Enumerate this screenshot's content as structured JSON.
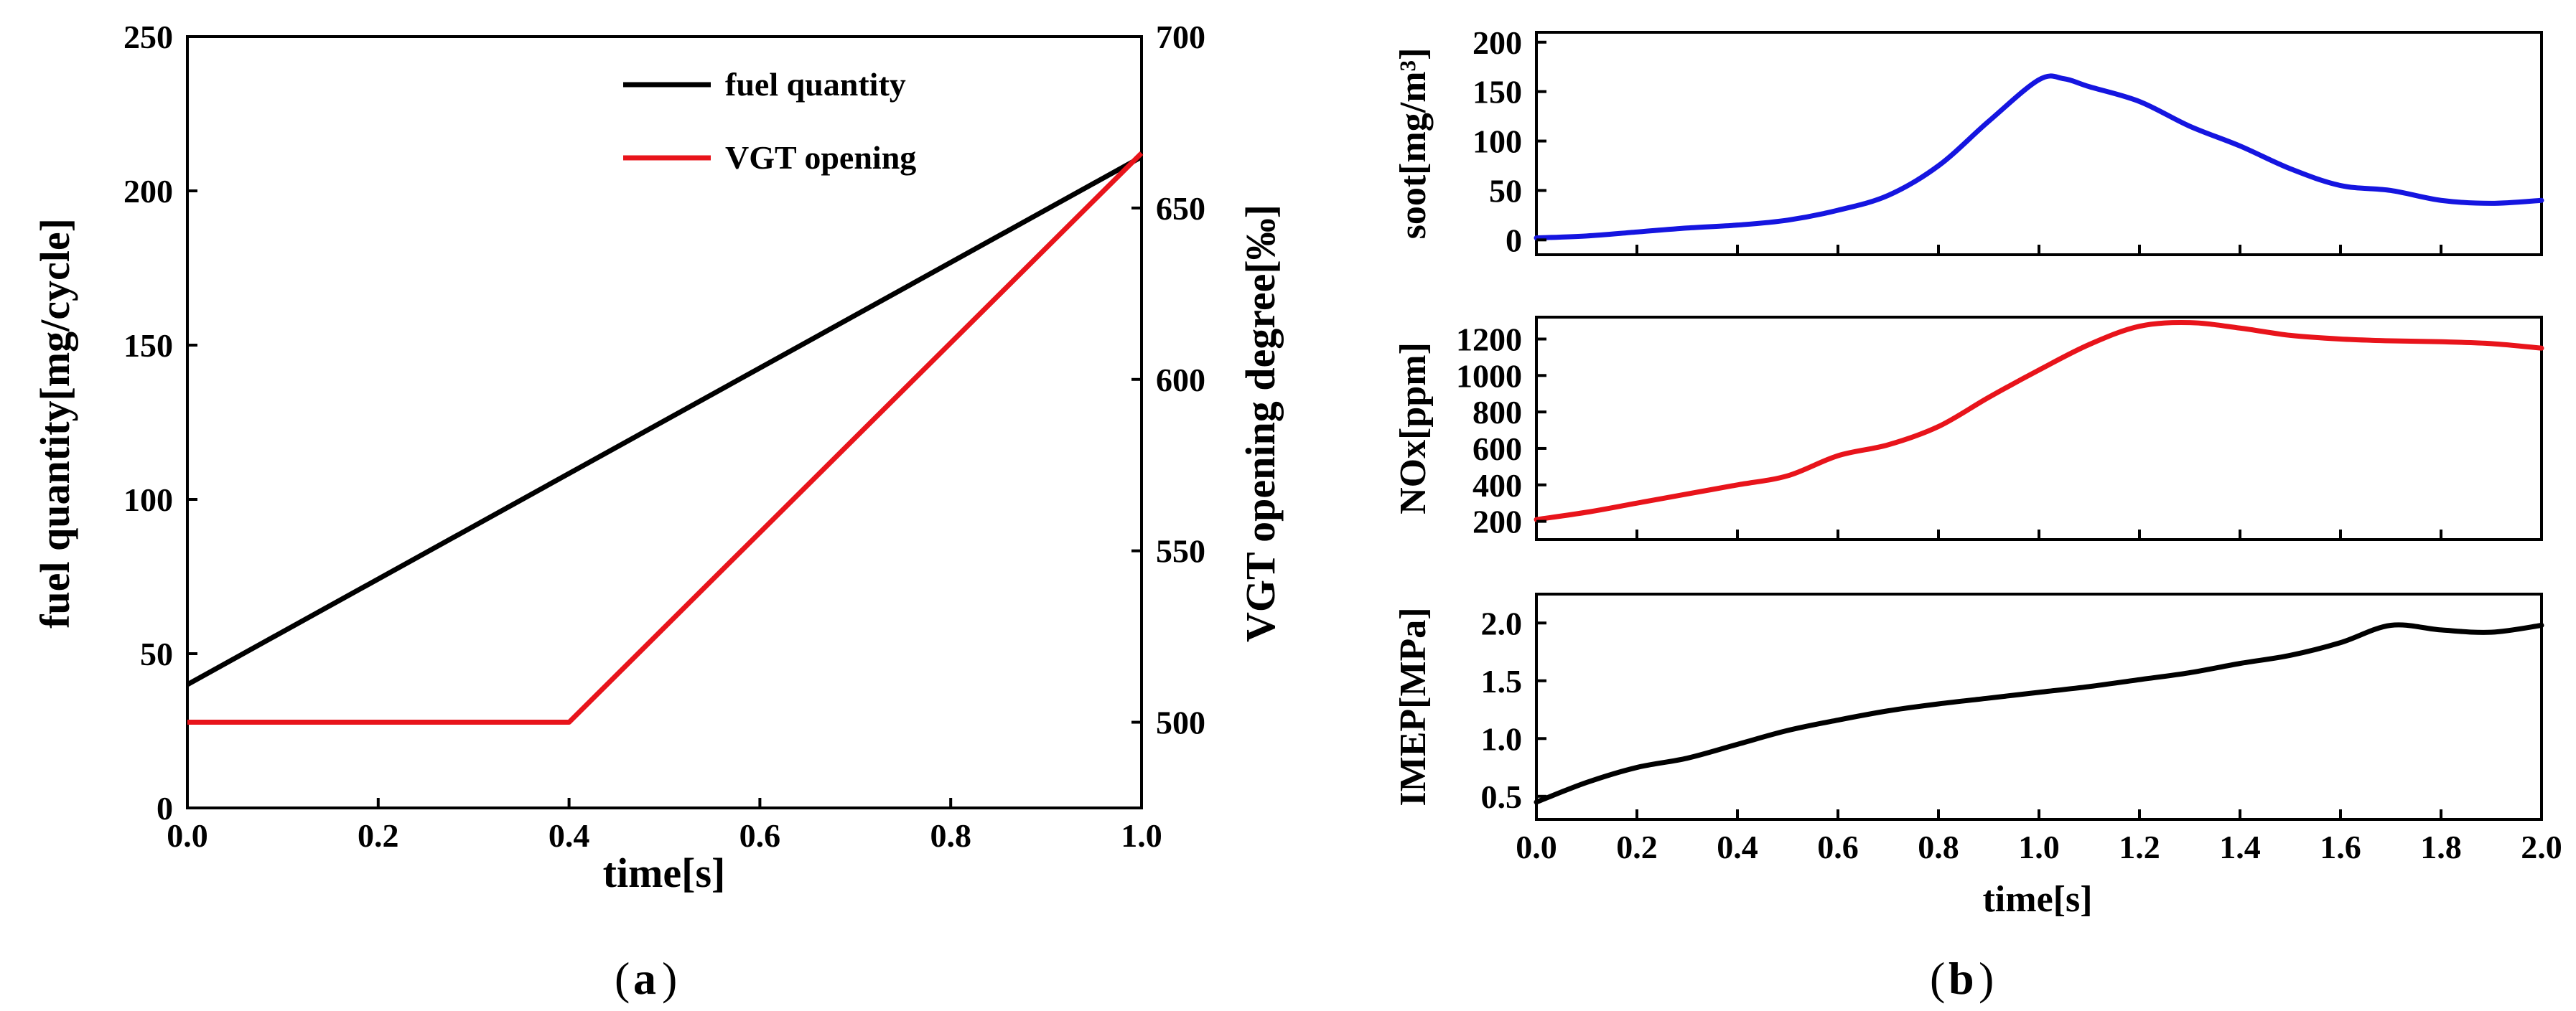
{
  "chart_data": [
    {
      "id": "a",
      "type": "line",
      "caption": "a",
      "xlabel": "time[s]",
      "ylabel": "fuel quantity[mg/cycle]",
      "y2label": "VGT opening degree[‰]",
      "xlim": [
        0,
        1.0
      ],
      "ylim": [
        0,
        250
      ],
      "y2lim": [
        475,
        700
      ],
      "xticks": [
        "0.0",
        "0.2",
        "0.4",
        "0.6",
        "0.8",
        "1.0"
      ],
      "yticks": [
        "0",
        "50",
        "100",
        "150",
        "200",
        "250"
      ],
      "y2ticks": [
        "500",
        "550",
        "600",
        "650",
        "700"
      ],
      "legend_position": "top-center",
      "series": [
        {
          "name": "fuel quantity",
          "axis": "left",
          "color": "#000000",
          "x": [
            0.0,
            1.0
          ],
          "y": [
            40,
            211
          ]
        },
        {
          "name": "VGT opening",
          "axis": "right",
          "color": "#e8141b",
          "x": [
            0.0,
            0.4,
            1.0
          ],
          "y": [
            500,
            500,
            666
          ]
        }
      ]
    },
    {
      "id": "b",
      "type": "line",
      "caption": "b",
      "xlabel": "time[s]",
      "xlim": [
        0,
        2.0
      ],
      "xticks": [
        "0.0",
        "0.2",
        "0.4",
        "0.6",
        "0.8",
        "1.0",
        "1.2",
        "1.4",
        "1.6",
        "1.8",
        "2.0"
      ],
      "panels": [
        {
          "name": "soot",
          "ylabel": "soot[mg/m³]",
          "color": "#1515e0",
          "ylim": [
            -15,
            210
          ],
          "yticks": [
            "0",
            "50",
            "100",
            "150",
            "200"
          ],
          "x": [
            0,
            0.1,
            0.2,
            0.3,
            0.4,
            0.5,
            0.6,
            0.7,
            0.8,
            0.9,
            1.0,
            1.05,
            1.1,
            1.2,
            1.3,
            1.4,
            1.5,
            1.6,
            1.7,
            1.8,
            1.9,
            2.0
          ],
          "y": [
            2,
            4,
            8,
            12,
            15,
            20,
            30,
            45,
            75,
            120,
            162,
            163,
            155,
            140,
            115,
            95,
            72,
            55,
            50,
            40,
            37,
            40
          ]
        },
        {
          "name": "NOx",
          "ylabel": "NOx[ppm]",
          "color": "#e8141b",
          "ylim": [
            100,
            1320
          ],
          "yticks": [
            "200",
            "400",
            "600",
            "800",
            "1000",
            "1200"
          ],
          "x": [
            0,
            0.1,
            0.2,
            0.3,
            0.4,
            0.5,
            0.6,
            0.7,
            0.8,
            0.9,
            1.0,
            1.1,
            1.2,
            1.3,
            1.4,
            1.5,
            1.6,
            1.7,
            1.8,
            1.9,
            2.0
          ],
          "y": [
            210,
            250,
            300,
            350,
            400,
            450,
            560,
            620,
            720,
            880,
            1030,
            1170,
            1270,
            1290,
            1260,
            1220,
            1200,
            1190,
            1185,
            1175,
            1150
          ]
        },
        {
          "name": "IMEP",
          "ylabel": "IMEP[MPa]",
          "color": "#000000",
          "ylim": [
            0.3,
            2.25
          ],
          "yticks": [
            "0.5",
            "1.0",
            "1.5",
            "2.0"
          ],
          "x": [
            0,
            0.1,
            0.2,
            0.3,
            0.4,
            0.5,
            0.6,
            0.7,
            0.8,
            0.9,
            1.0,
            1.1,
            1.2,
            1.3,
            1.4,
            1.5,
            1.6,
            1.7,
            1.8,
            1.9,
            2.0
          ],
          "y": [
            0.45,
            0.62,
            0.75,
            0.83,
            0.95,
            1.07,
            1.16,
            1.24,
            1.3,
            1.35,
            1.4,
            1.45,
            1.51,
            1.57,
            1.65,
            1.72,
            1.83,
            1.98,
            1.94,
            1.92,
            1.98
          ]
        }
      ]
    }
  ]
}
